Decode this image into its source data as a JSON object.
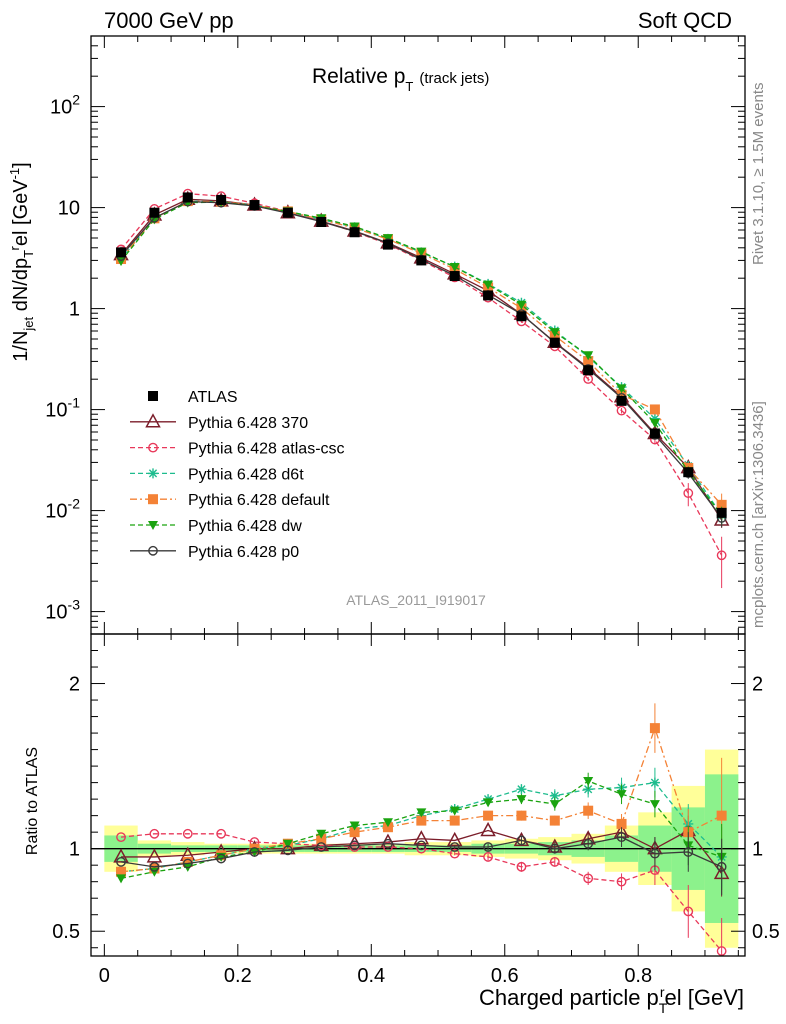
{
  "header": {
    "left": "7000 GeV pp",
    "right": "Soft QCD"
  },
  "side_labels": {
    "rivet": "Rivet 3.1.10, ≥ 1.5M events",
    "mcplots": "mcplots.cern.ch [arXiv:1306.3436]"
  },
  "chart_data": {
    "type": "line",
    "title": "Relative pT (track jets)",
    "title_main": "Relative p",
    "title_sub": "T",
    "title_paren": "(track jets)",
    "analysis_id": "ATLAS_2011_I919017",
    "ylabel_top": "1/N_jet dN/dp_T^rel [GeV^-1]",
    "ylabel_bottom": "Ratio to ATLAS",
    "xlabel": "Charged particle p_T^rel [GeV]",
    "xlim": [
      -0.02,
      0.96
    ],
    "ylim_top": [
      0.0006,
      500
    ],
    "yscale_top": "log",
    "ylim_ratio": [
      0.35,
      2.3
    ],
    "x_ticks": [
      "0",
      "0.2",
      "0.4",
      "0.6",
      "0.8"
    ],
    "ratio_ticks": [
      "0.5",
      "1",
      "2"
    ],
    "top_ticks": {
      "1e-3": "10^-3",
      "1e-2": "10^-2",
      "1e-1": "10^-1",
      "1": "1",
      "10": "10",
      "1e2": "10^2"
    },
    "legend_position": "middle-left",
    "x": [
      0.025,
      0.075,
      0.125,
      0.175,
      0.225,
      0.275,
      0.325,
      0.375,
      0.425,
      0.475,
      0.525,
      0.575,
      0.625,
      0.675,
      0.725,
      0.775,
      0.825,
      0.875,
      0.925
    ],
    "data": {
      "name": "ATLAS",
      "values": [
        3.6,
        8.9,
        12.6,
        11.9,
        10.6,
        8.9,
        7.2,
        5.7,
        4.3,
        3.0,
        2.1,
        1.35,
        0.84,
        0.46,
        0.245,
        0.122,
        0.058,
        0.024,
        0.0095
      ]
    },
    "bands": {
      "inner": [
        0.08,
        0.03,
        0.02,
        0.02,
        0.02,
        0.02,
        0.02,
        0.02,
        0.02,
        0.02,
        0.02,
        0.03,
        0.03,
        0.04,
        0.05,
        0.08,
        0.14,
        0.25,
        0.45
      ],
      "outer": [
        0.14,
        0.05,
        0.04,
        0.03,
        0.03,
        0.03,
        0.03,
        0.03,
        0.03,
        0.04,
        0.04,
        0.05,
        0.06,
        0.07,
        0.09,
        0.14,
        0.22,
        0.38,
        0.6
      ]
    },
    "series": [
      {
        "name": "Pythia 6.428 370",
        "color": "#7b1d2a",
        "dash": "solid",
        "marker": "open-triangle",
        "ratio": [
          0.95,
          0.95,
          0.96,
          0.98,
          1.0,
          1.0,
          1.02,
          1.03,
          1.04,
          1.06,
          1.05,
          1.11,
          1.05,
          1.01,
          1.06,
          1.1,
          1.0,
          1.11,
          0.85
        ],
        "ratio_err": [
          0,
          0,
          0,
          0,
          0,
          0,
          0,
          0,
          0,
          0,
          0,
          0,
          0,
          0.03,
          0.04,
          0.05,
          0.07,
          0.09,
          0.14
        ]
      },
      {
        "name": "Pythia 6.428 atlas-csc",
        "color": "#e8385a",
        "dash": "dashed",
        "marker": "open-circle",
        "ratio": [
          1.07,
          1.09,
          1.09,
          1.09,
          1.04,
          1.03,
          1.02,
          1.01,
          1.01,
          1.0,
          0.97,
          0.95,
          0.89,
          0.92,
          0.82,
          0.8,
          0.87,
          0.62,
          0.38
        ],
        "ratio_err": [
          0,
          0,
          0,
          0,
          0,
          0,
          0,
          0,
          0,
          0,
          0.01,
          0.02,
          0.03,
          0.03,
          0.04,
          0.05,
          0.09,
          0.16,
          0.2
        ]
      },
      {
        "name": "Pythia 6.428 d6t",
        "color": "#1ebc8e",
        "dash": "dashed",
        "marker": "asterisk",
        "ratio": [
          0.86,
          0.88,
          0.92,
          0.96,
          1.0,
          1.02,
          1.06,
          1.12,
          1.14,
          1.2,
          1.24,
          1.3,
          1.36,
          1.32,
          1.36,
          1.37,
          1.4,
          1.15,
          0.95
        ],
        "ratio_err": [
          0,
          0,
          0,
          0,
          0,
          0,
          0,
          0,
          0,
          0,
          0.02,
          0.02,
          0.03,
          0.04,
          0.05,
          0.06,
          0.09,
          0.12,
          0.18
        ]
      },
      {
        "name": "Pythia 6.428 default",
        "color": "#f48236",
        "dash": "dashdot",
        "marker": "square",
        "ratio": [
          0.86,
          0.88,
          0.92,
          0.96,
          1.0,
          1.03,
          1.06,
          1.1,
          1.13,
          1.17,
          1.17,
          1.2,
          1.2,
          1.17,
          1.23,
          1.15,
          1.73,
          1.1,
          1.2
        ],
        "ratio_err": [
          0,
          0,
          0,
          0,
          0,
          0,
          0,
          0,
          0,
          0,
          0.02,
          0.02,
          0.03,
          0.03,
          0.05,
          0.06,
          0.15,
          0.14,
          0.35
        ]
      },
      {
        "name": "Pythia 6.428 dw",
        "color": "#1aa30f",
        "dash": "dashed",
        "marker": "down-triangle",
        "ratio": [
          0.82,
          0.86,
          0.89,
          0.95,
          0.98,
          1.03,
          1.09,
          1.14,
          1.16,
          1.22,
          1.23,
          1.28,
          1.3,
          1.27,
          1.41,
          1.33,
          1.27,
          1.02,
          0.95
        ],
        "ratio_err": [
          0,
          0,
          0,
          0,
          0,
          0,
          0,
          0,
          0,
          0,
          0.02,
          0.02,
          0.03,
          0.04,
          0.05,
          0.06,
          0.08,
          0.12,
          0.2
        ]
      },
      {
        "name": "Pythia 6.428 p0",
        "color": "#3a3a3a",
        "dash": "solid",
        "marker": "open-circle",
        "ratio": [
          0.92,
          0.89,
          0.91,
          0.94,
          0.98,
          0.99,
          1.01,
          1.02,
          1.03,
          1.02,
          1.01,
          1.01,
          1.05,
          1.0,
          1.03,
          1.07,
          0.97,
          0.98,
          0.89
        ],
        "ratio_err": [
          0,
          0,
          0,
          0,
          0,
          0,
          0,
          0,
          0,
          0,
          0.01,
          0.02,
          0.03,
          0.03,
          0.04,
          0.06,
          0.1,
          0.12,
          0.17
        ]
      }
    ]
  }
}
